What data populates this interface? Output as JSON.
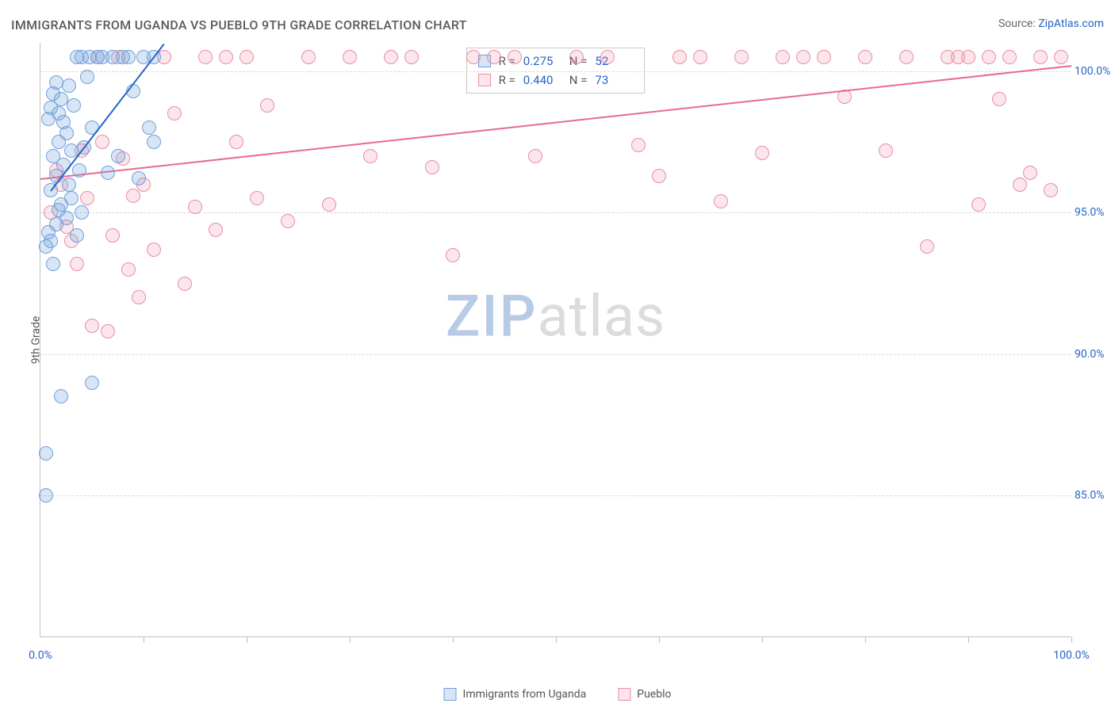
{
  "title": "IMMIGRANTS FROM UGANDA VS PUEBLO 9TH GRADE CORRELATION CHART",
  "source": {
    "label": "Source: ",
    "name": "ZipAtlas.com"
  },
  "ylabel": "9th Grade",
  "watermark": {
    "part1": "ZIP",
    "part2": "atlas"
  },
  "colors": {
    "title": "#5a5a5a",
    "axis_label": "#2864c7",
    "grid": "#d9d9d9",
    "border": "#bfbfbf",
    "series1_fill": "rgba(110,160,220,0.28)",
    "series1_stroke": "#6ea0dc",
    "series1_trend": "#2864c7",
    "series2_fill": "rgba(235,140,165,0.22)",
    "series2_stroke": "#eb8ca5",
    "series2_trend": "#e86a8f"
  },
  "chart": {
    "type": "scatter",
    "xlim": [
      0,
      100
    ],
    "ylim": [
      80,
      101
    ],
    "yticks": [
      {
        "v": 85,
        "label": "85.0%"
      },
      {
        "v": 90,
        "label": "90.0%"
      },
      {
        "v": 95,
        "label": "95.0%"
      },
      {
        "v": 100,
        "label": "100.0%"
      }
    ],
    "xticks_minor": [
      10,
      20,
      30,
      40,
      50,
      60,
      70,
      80,
      90,
      100
    ],
    "xticks_label": [
      {
        "v": 0,
        "label": "0.0%"
      },
      {
        "v": 100,
        "label": "100.0%"
      }
    ],
    "marker_radius": 9,
    "series": [
      {
        "id": "uganda",
        "name": "Immigrants from Uganda",
        "r_label": "R =",
        "r_value": "0.275",
        "n_label": "N =",
        "n_value": "52",
        "trend": {
          "x1": 1,
          "y1": 95.8,
          "x2": 12,
          "y2": 101
        },
        "points": [
          [
            0.5,
            93.8
          ],
          [
            0.5,
            85.0
          ],
          [
            0.5,
            86.5
          ],
          [
            0.8,
            98.3
          ],
          [
            0.8,
            94.3
          ],
          [
            1,
            95.8
          ],
          [
            1,
            98.7
          ],
          [
            1,
            94.0
          ],
          [
            1.2,
            93.2
          ],
          [
            1.2,
            99.2
          ],
          [
            1.2,
            97.0
          ],
          [
            1.5,
            99.6
          ],
          [
            1.5,
            94.6
          ],
          [
            1.5,
            96.3
          ],
          [
            1.8,
            97.5
          ],
          [
            1.8,
            98.5
          ],
          [
            1.8,
            95.1
          ],
          [
            2,
            95.3
          ],
          [
            2,
            99.0
          ],
          [
            2,
            88.5
          ],
          [
            2.2,
            96.7
          ],
          [
            2.2,
            98.2
          ],
          [
            2.5,
            97.8
          ],
          [
            2.5,
            94.8
          ],
          [
            2.8,
            96.0
          ],
          [
            2.8,
            99.5
          ],
          [
            3,
            95.5
          ],
          [
            3,
            97.2
          ],
          [
            3.2,
            98.8
          ],
          [
            3.5,
            100.5
          ],
          [
            3.5,
            94.2
          ],
          [
            3.8,
            96.5
          ],
          [
            4,
            100.5
          ],
          [
            4,
            95.0
          ],
          [
            4.2,
            97.3
          ],
          [
            4.5,
            99.8
          ],
          [
            4.8,
            100.5
          ],
          [
            5,
            98.0
          ],
          [
            5.5,
            100.5
          ],
          [
            5,
            89.0
          ],
          [
            6,
            100.5
          ],
          [
            6.5,
            96.4
          ],
          [
            7,
            100.5
          ],
          [
            7.5,
            97.0
          ],
          [
            8,
            100.5
          ],
          [
            8.5,
            100.5
          ],
          [
            9,
            99.3
          ],
          [
            9.5,
            96.2
          ],
          [
            10,
            100.5
          ],
          [
            10.5,
            98.0
          ],
          [
            11,
            97.5
          ],
          [
            11,
            100.5
          ]
        ]
      },
      {
        "id": "pueblo",
        "name": "Pueblo",
        "r_label": "R =",
        "r_value": "0.440",
        "n_label": "N =",
        "n_value": "73",
        "trend": {
          "x1": 0,
          "y1": 96.2,
          "x2": 100,
          "y2": 100.2
        },
        "points": [
          [
            1,
            95.0
          ],
          [
            1.5,
            96.5
          ],
          [
            2,
            96.0
          ],
          [
            2.5,
            94.5
          ],
          [
            3,
            94.0
          ],
          [
            3.5,
            93.2
          ],
          [
            4,
            97.2
          ],
          [
            4.5,
            95.5
          ],
          [
            5,
            91.0
          ],
          [
            5.5,
            100.5
          ],
          [
            6,
            97.5
          ],
          [
            6.5,
            90.8
          ],
          [
            7,
            94.2
          ],
          [
            7.5,
            100.5
          ],
          [
            8,
            96.9
          ],
          [
            8.5,
            93.0
          ],
          [
            9,
            95.6
          ],
          [
            9.5,
            92.0
          ],
          [
            10,
            96.0
          ],
          [
            11,
            93.7
          ],
          [
            12,
            100.5
          ],
          [
            13,
            98.5
          ],
          [
            14,
            92.5
          ],
          [
            15,
            95.2
          ],
          [
            16,
            100.5
          ],
          [
            17,
            94.4
          ],
          [
            18,
            100.5
          ],
          [
            19,
            97.5
          ],
          [
            20,
            100.5
          ],
          [
            21,
            95.5
          ],
          [
            22,
            98.8
          ],
          [
            24,
            94.7
          ],
          [
            26,
            100.5
          ],
          [
            28,
            95.3
          ],
          [
            30,
            100.5
          ],
          [
            32,
            97.0
          ],
          [
            34,
            100.5
          ],
          [
            36,
            100.5
          ],
          [
            38,
            96.6
          ],
          [
            40,
            93.5
          ],
          [
            42,
            100.5
          ],
          [
            44,
            100.5
          ],
          [
            46,
            100.5
          ],
          [
            48,
            97.0
          ],
          [
            52,
            100.5
          ],
          [
            55,
            100.5
          ],
          [
            58,
            97.4
          ],
          [
            60,
            96.3
          ],
          [
            62,
            100.5
          ],
          [
            64,
            100.5
          ],
          [
            66,
            95.4
          ],
          [
            68,
            100.5
          ],
          [
            70,
            97.1
          ],
          [
            72,
            100.5
          ],
          [
            74,
            100.5
          ],
          [
            76,
            100.5
          ],
          [
            78,
            99.1
          ],
          [
            80,
            100.5
          ],
          [
            82,
            97.2
          ],
          [
            84,
            100.5
          ],
          [
            86,
            93.8
          ],
          [
            88,
            100.5
          ],
          [
            89,
            100.5
          ],
          [
            90,
            100.5
          ],
          [
            91,
            95.3
          ],
          [
            92,
            100.5
          ],
          [
            93,
            99.0
          ],
          [
            94,
            100.5
          ],
          [
            95,
            96.0
          ],
          [
            96,
            96.4
          ],
          [
            97,
            100.5
          ],
          [
            98,
            95.8
          ],
          [
            99,
            100.5
          ]
        ]
      }
    ]
  },
  "bottom_legend": [
    {
      "series": "uganda"
    },
    {
      "series": "pueblo"
    }
  ]
}
